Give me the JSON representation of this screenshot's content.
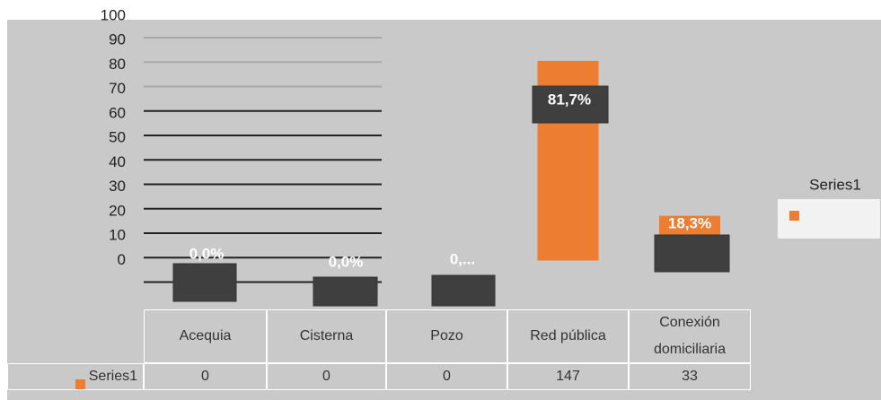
{
  "chart_data": {
    "type": "bar",
    "categories": [
      "Acequia",
      "Cisterna",
      "Pozo",
      "Red pública",
      "Conexión domiciliaria"
    ],
    "series": [
      {
        "name": "Series1",
        "color": "#ed7d31",
        "values": [
          0,
          0,
          0,
          81.7,
          18.3
        ],
        "value_labels": [
          "0,0%",
          "0,0%",
          "0,...",
          "81,7%",
          "18,3%"
        ]
      }
    ],
    "table_values": [
      0,
      0,
      0,
      147,
      33
    ],
    "ylim": [
      -20,
      100
    ],
    "yticks": [
      0,
      10,
      20,
      30,
      40,
      50,
      60,
      70,
      80,
      90,
      100
    ],
    "grid": true,
    "legend": "right"
  }
}
